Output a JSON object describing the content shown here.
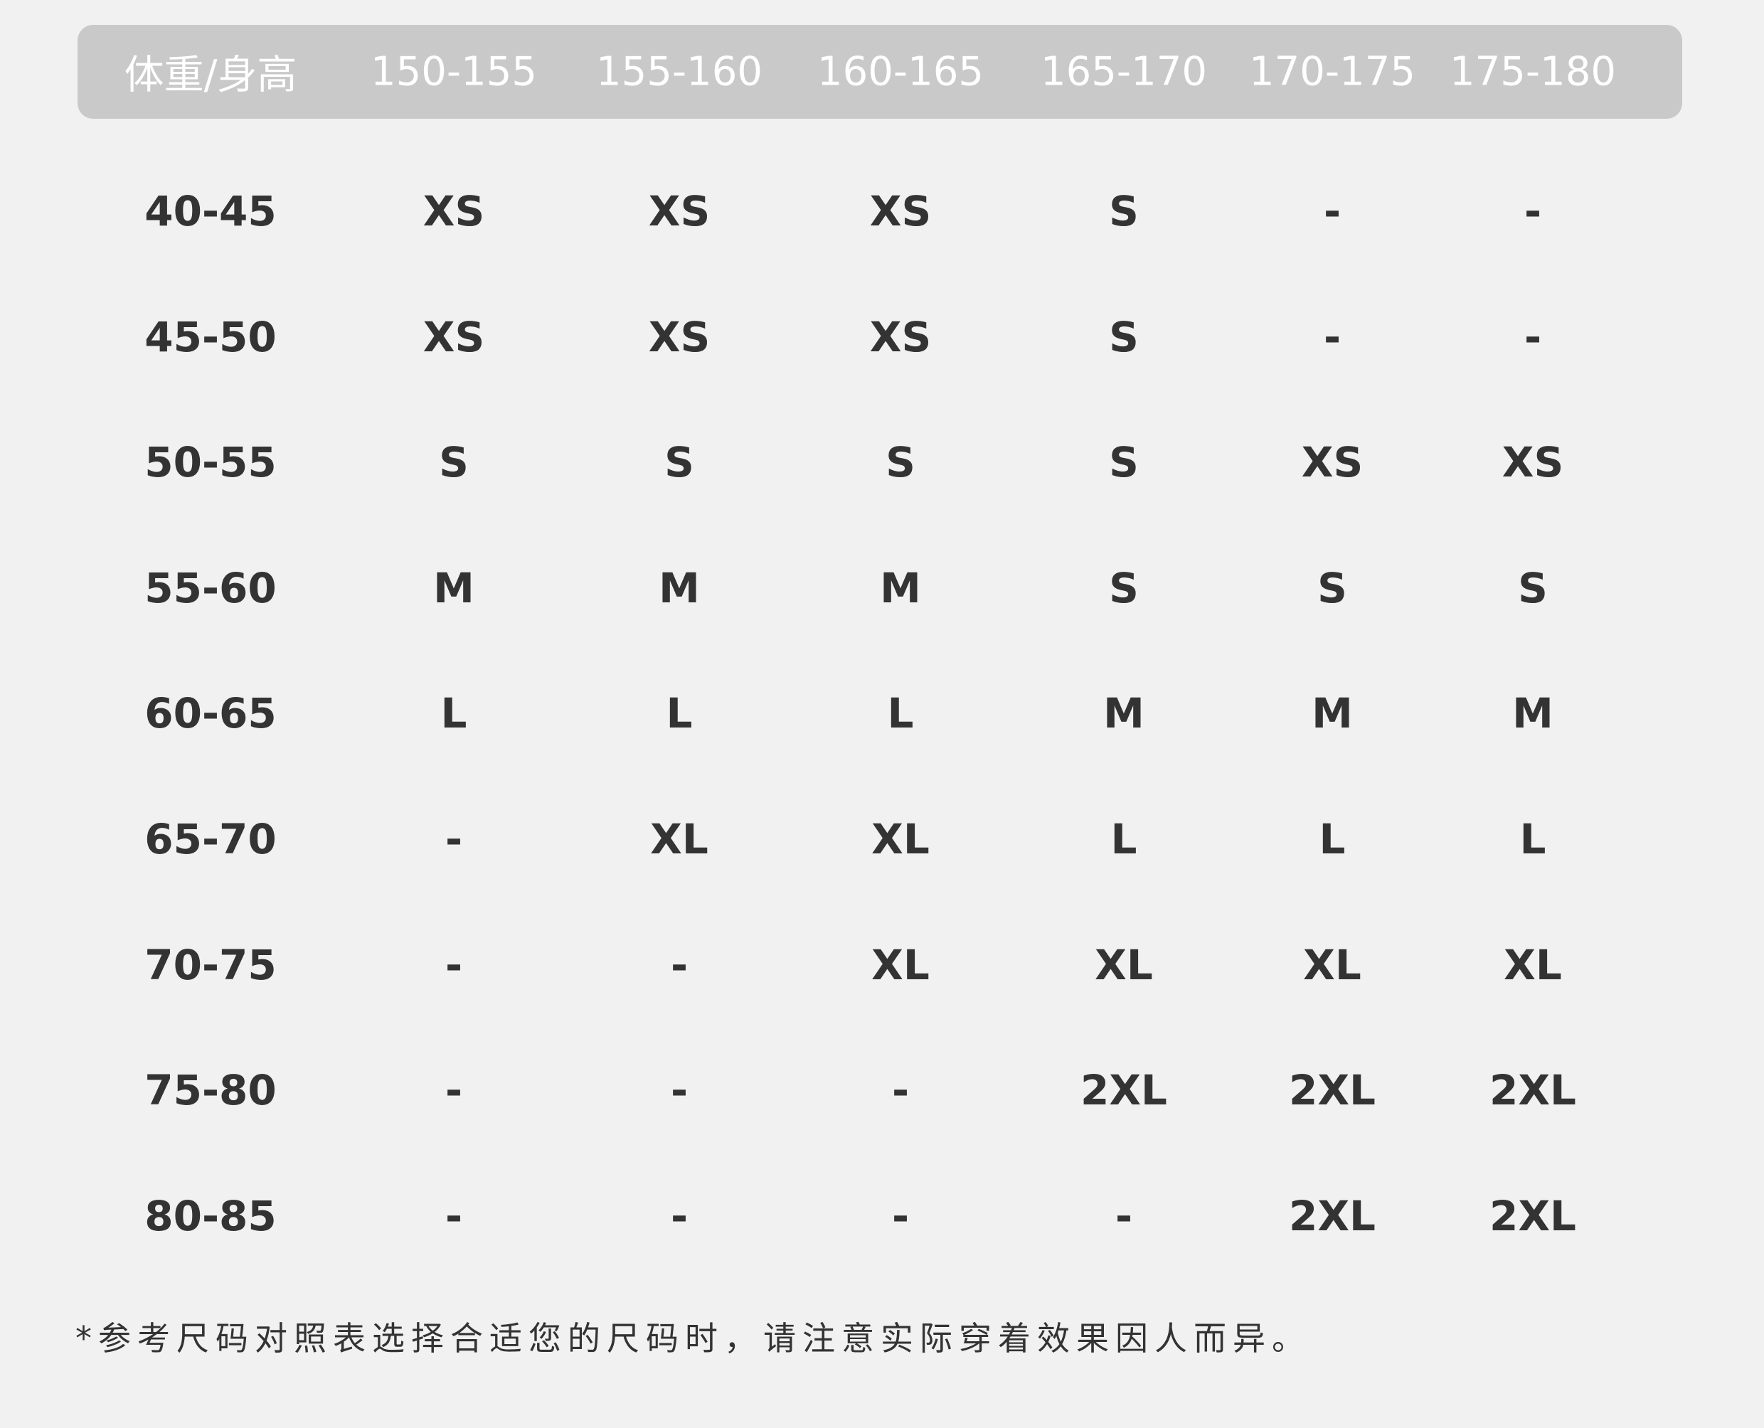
{
  "header": [
    "体重/身高",
    "150-155",
    "155-160",
    "160-165",
    "165-170",
    "170-175",
    "175-180"
  ],
  "rows": [
    {
      "weight": "40-45",
      "sizes": [
        "XS",
        "XS",
        "XS",
        "S",
        "-",
        "-"
      ]
    },
    {
      "weight": "45-50",
      "sizes": [
        "XS",
        "XS",
        "XS",
        "S",
        "-",
        "-"
      ]
    },
    {
      "weight": "50-55",
      "sizes": [
        "S",
        "S",
        "S",
        "S",
        "XS",
        "XS"
      ]
    },
    {
      "weight": "55-60",
      "sizes": [
        "M",
        "M",
        "M",
        "S",
        "S",
        "S"
      ]
    },
    {
      "weight": "60-65",
      "sizes": [
        "L",
        "L",
        "L",
        "M",
        "M",
        "M"
      ]
    },
    {
      "weight": "65-70",
      "sizes": [
        "-",
        "XL",
        "XL",
        "L",
        "L",
        "L"
      ]
    },
    {
      "weight": "70-75",
      "sizes": [
        "-",
        "-",
        "XL",
        "XL",
        "XL",
        "XL"
      ]
    },
    {
      "weight": "75-80",
      "sizes": [
        "-",
        "-",
        "-",
        "2XL",
        "2XL",
        "2XL"
      ]
    },
    {
      "weight": "80-85",
      "sizes": [
        "-",
        "-",
        "-",
        "-",
        "2XL",
        "2XL"
      ]
    }
  ],
  "footnote": "*参考尺码对照表选择合适您的尺码时，请注意实际穿着效果因人而异。",
  "colors": {
    "header_bg": "#c9c9c9",
    "text": "#333333",
    "background": "#f1f1f1"
  }
}
